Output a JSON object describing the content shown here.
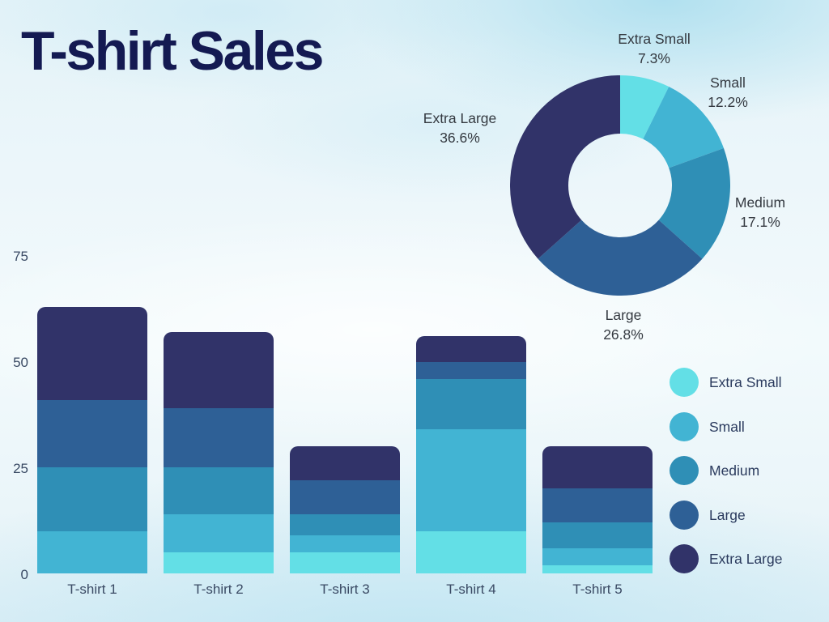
{
  "title": "T-shirt Sales",
  "colors": {
    "extra_small": "#63DFE6",
    "small": "#42B4D3",
    "medium": "#2F8FB6",
    "large": "#2E6096",
    "extra_large": "#313369",
    "title_text": "#141A52",
    "donut_label_text": "#343940",
    "axis_label_text": "#3A4A64",
    "legend_label_text": "#2B3B5E"
  },
  "chart_data": [
    {
      "type": "pie",
      "subtype": "donut",
      "title": "",
      "categories": [
        "Extra Small",
        "Small",
        "Medium",
        "Large",
        "Extra Large"
      ],
      "values": [
        7.3,
        12.2,
        17.1,
        26.8,
        36.6
      ],
      "percent_labels": [
        "7.3%",
        "12.2%",
        "17.1%",
        "26.8%",
        "36.6%"
      ],
      "start_angle_deg": 0,
      "direction": "clockwise",
      "inner_radius_ratio": 0.47,
      "legend_position": "callout-labels"
    },
    {
      "type": "bar",
      "stacked": true,
      "title": "",
      "categories": [
        "T-shirt 1",
        "T-shirt 2",
        "T-shirt 3",
        "T-shirt 4",
        "T-shirt 5"
      ],
      "series": [
        {
          "name": "Extra Small",
          "values": [
            0,
            5,
            5,
            10,
            2
          ]
        },
        {
          "name": "Small",
          "values": [
            10,
            9,
            4,
            24,
            4
          ]
        },
        {
          "name": "Medium",
          "values": [
            15,
            11,
            5,
            12,
            6
          ]
        },
        {
          "name": "Large",
          "values": [
            16,
            14,
            8,
            4,
            8
          ]
        },
        {
          "name": "Extra Large",
          "values": [
            22,
            18,
            8,
            6,
            10
          ]
        }
      ],
      "totals": [
        63,
        57,
        30,
        56,
        30
      ],
      "xlabel": "",
      "ylabel": "",
      "ylim": [
        0,
        75
      ],
      "yticks": [
        "0",
        "25",
        "50",
        "75"
      ],
      "grid": false,
      "legend_position": "right"
    }
  ],
  "legend": {
    "items": [
      {
        "label": "Extra Small"
      },
      {
        "label": "Small"
      },
      {
        "label": "Medium"
      },
      {
        "label": "Large"
      },
      {
        "label": "Extra Large"
      }
    ]
  }
}
